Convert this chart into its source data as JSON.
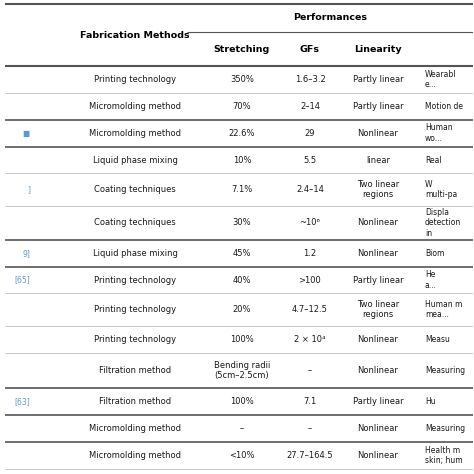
{
  "title": "Performances",
  "rows": [
    {
      "ref": "",
      "method": "Printing technology",
      "stretching": "350%",
      "gfs": "1.6–3.2",
      "linearity": "Partly linear",
      "app": "Wearabl\ne..."
    },
    {
      "ref": "",
      "method": "Micromolding method",
      "stretching": "70%",
      "gfs": "2–14",
      "linearity": "Partly linear",
      "app": "Motion de"
    },
    {
      "ref": "■",
      "method": "Micromolding method",
      "stretching": "22.6%",
      "gfs": "29",
      "linearity": "Nonlinear",
      "app": "Human\nwo..."
    },
    {
      "ref": "",
      "method": "Liquid phase mixing",
      "stretching": "10%",
      "gfs": "5.5",
      "linearity": "linear",
      "app": "Real"
    },
    {
      "ref": "]",
      "method": "Coating techniques",
      "stretching": "7.1%",
      "gfs": "2.4–14",
      "linearity": "Two linear\nregions",
      "app": "W\nmulti-pa"
    },
    {
      "ref": "",
      "method": "Coating techniques",
      "stretching": "30%",
      "gfs": "~10⁶",
      "linearity": "Nonlinear",
      "app": "Displa\ndetection\nin"
    },
    {
      "ref": "9]",
      "method": "Liquid phase mixing",
      "stretching": "45%",
      "gfs": "1.2",
      "linearity": "Nonlinear",
      "app": "Biom"
    },
    {
      "ref": "[65]",
      "method": "Printing technology",
      "stretching": "40%",
      "gfs": ">100",
      "linearity": "Partly linear",
      "app": "He\na..."
    },
    {
      "ref": "",
      "method": "Printing technology",
      "stretching": "20%",
      "gfs": "4.7–12.5",
      "linearity": "Two linear\nregions",
      "app": "Human m\nmea..."
    },
    {
      "ref": "",
      "method": "Printing technology",
      "stretching": "100%",
      "gfs": "2 × 10⁴",
      "linearity": "Nonlinear",
      "app": "Measu"
    },
    {
      "ref": "",
      "method": "Filtration method",
      "stretching": "Bending radii\n(5cm–2.5cm)",
      "gfs": "–",
      "linearity": "Nonlinear",
      "app": "Measuring"
    },
    {
      "ref": "[63]",
      "method": "Filtration method",
      "stretching": "100%",
      "gfs": "7.1",
      "linearity": "Partly linear",
      "app": "Hu"
    },
    {
      "ref": "",
      "method": "Micromolding method",
      "stretching": "–",
      "gfs": "–",
      "linearity": "Nonlinear",
      "app": "Measuring"
    },
    {
      "ref": "",
      "method": "Micromolding method",
      "stretching": "<10%",
      "gfs": "27.7–164.5",
      "linearity": "Nonlinear",
      "app": "Health m\nskin; hum"
    }
  ],
  "thick_lines_after_rows": [
    1,
    2,
    5,
    6,
    10,
    11,
    12
  ],
  "bg_color": "#ffffff",
  "line_color_thin": "#bbbbbb",
  "line_color_thick": "#555555",
  "text_color": "#1a1a1a",
  "ref_color": "#5b9bd5",
  "bold_color": "#000000",
  "font_size_header": 6.8,
  "font_size_body": 6.0,
  "font_size_ref": 5.5
}
